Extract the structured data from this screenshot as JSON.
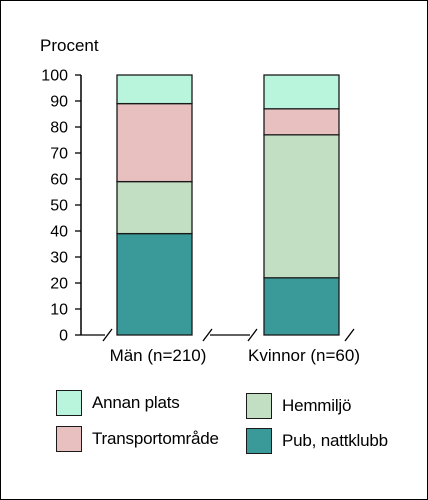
{
  "chart_data": {
    "type": "bar",
    "stacked": true,
    "ylabel": "Procent",
    "ylim": [
      0,
      100
    ],
    "yticks": [
      0,
      10,
      20,
      30,
      40,
      50,
      60,
      70,
      80,
      90,
      100
    ],
    "categories": [
      "Män (n=210)",
      "Kvinnor (n=60)"
    ],
    "series": [
      {
        "name": "Pub, nattklubb",
        "values": [
          39,
          22
        ],
        "color": "#3a9a9a"
      },
      {
        "name": "Hemmiljö",
        "values": [
          20,
          55
        ],
        "color": "#c3dfc3"
      },
      {
        "name": "Transportområde",
        "values": [
          30,
          10
        ],
        "color": "#e8c0c0"
      },
      {
        "name": "Annan plats",
        "values": [
          11,
          13
        ],
        "color": "#b8f5dc"
      }
    ],
    "grid": false,
    "legend_position": "bottom"
  },
  "legend": {
    "items": [
      {
        "label": "Annan plats",
        "color": "#b8f5dc"
      },
      {
        "label": "Hemmiljö",
        "color": "#c3dfc3"
      },
      {
        "label": "Transportområde",
        "color": "#e8c0c0"
      },
      {
        "label": "Pub, nattklubb",
        "color": "#3a9a9a"
      }
    ]
  }
}
